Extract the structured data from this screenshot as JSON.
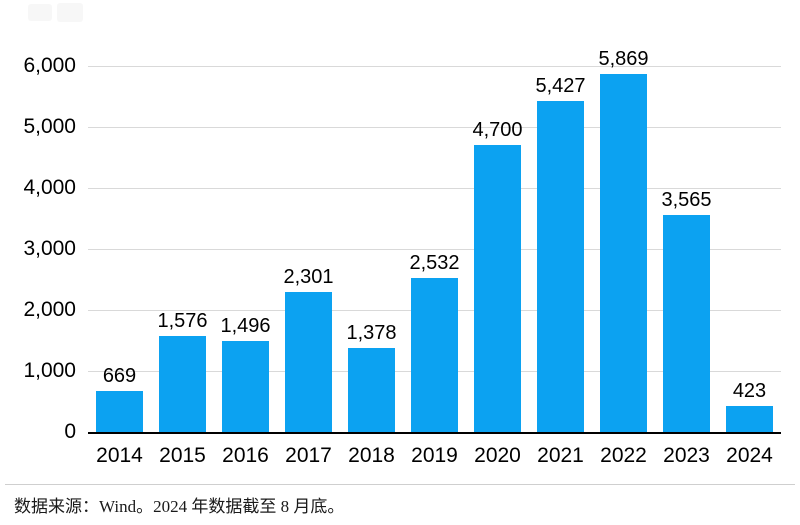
{
  "chart_data": {
    "type": "bar",
    "categories": [
      "2014",
      "2015",
      "2016",
      "2017",
      "2018",
      "2019",
      "2020",
      "2021",
      "2022",
      "2023",
      "2024"
    ],
    "values": [
      669,
      1576,
      1496,
      2301,
      1378,
      2532,
      4700,
      5427,
      5869,
      3565,
      423
    ],
    "value_labels": [
      "669",
      "1,576",
      "1,496",
      "2,301",
      "1,378",
      "2,532",
      "4,700",
      "5,427",
      "5,869",
      "3,565",
      "423"
    ],
    "title": "",
    "xlabel": "",
    "ylabel": "",
    "ylim": [
      0,
      6000
    ],
    "ytick_interval": 1000,
    "yticks": [
      "0",
      "1,000",
      "2,000",
      "3,000",
      "4,000",
      "5,000",
      "6,000"
    ],
    "grid": true,
    "legend_position": "none",
    "bar_color": "#0ca2f1",
    "gridline_color": "#d9d9d9",
    "axis_color": "#000000"
  },
  "caption": {
    "text": "数据来源：Wind。2024 年数据截至 8 月底。"
  }
}
